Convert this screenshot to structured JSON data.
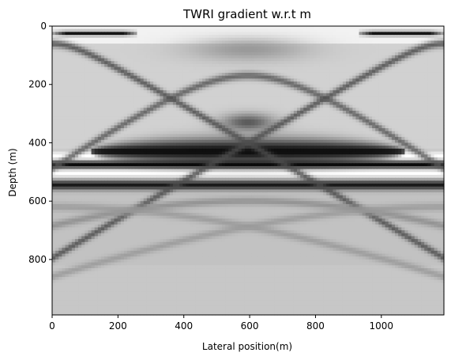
{
  "chart_data": {
    "type": "heatmap",
    "title": "TWRI gradient w.r.t m",
    "xlabel": "Lateral position(m)",
    "ylabel": "Depth (m)",
    "xlim": [
      0,
      1190
    ],
    "ylim": [
      990,
      0
    ],
    "colormap": "gray",
    "grid": false,
    "xticks": [
      0,
      200,
      400,
      600,
      800,
      1000
    ],
    "yticks": [
      0,
      200,
      400,
      600,
      800
    ],
    "structures": [
      {
        "kind": "band",
        "depth": 475,
        "width": 14,
        "value": 0.02
      },
      {
        "kind": "band",
        "depth": 505,
        "width": 14,
        "value": 1.0
      },
      {
        "kind": "band",
        "depth": 445,
        "width": 14,
        "value": 1.0
      },
      {
        "kind": "band",
        "depth": 545,
        "width": 16,
        "value": 0.1
      },
      {
        "kind": "lens",
        "x_center": 595,
        "half_width": 480,
        "depth": 430,
        "thickness": 45,
        "value": 0.05
      },
      {
        "kind": "band",
        "depth": 25,
        "width": 8,
        "value": 0.08,
        "x_range": [
          0,
          260
        ]
      },
      {
        "kind": "band",
        "depth": 25,
        "width": 8,
        "value": 0.08,
        "x_range": [
          930,
          1190
        ]
      },
      {
        "kind": "blob",
        "x": 595,
        "y": 330,
        "rx": 80,
        "ry": 30,
        "value": 0.35
      },
      {
        "kind": "blob",
        "x": 595,
        "y": 80,
        "rx": 180,
        "ry": 40,
        "value": 0.6
      },
      {
        "kind": "hyperbola",
        "x0": 595,
        "t0": 170,
        "v": 1.3,
        "value": 0.35
      },
      {
        "kind": "hyperbola",
        "x0": 0,
        "t0": 60,
        "v": 1.5,
        "value": 0.3
      },
      {
        "kind": "hyperbola",
        "x0": 1190,
        "t0": 60,
        "v": 1.5,
        "value": 0.3
      },
      {
        "kind": "hyperbola",
        "x0": 595,
        "t0": 600,
        "v": 1.8,
        "value": 0.55
      },
      {
        "kind": "hyperbola",
        "x0": 0,
        "t0": 620,
        "v": 2.0,
        "value": 0.6
      },
      {
        "kind": "hyperbola",
        "x0": 1190,
        "t0": 620,
        "v": 2.0,
        "value": 0.6
      }
    ]
  }
}
